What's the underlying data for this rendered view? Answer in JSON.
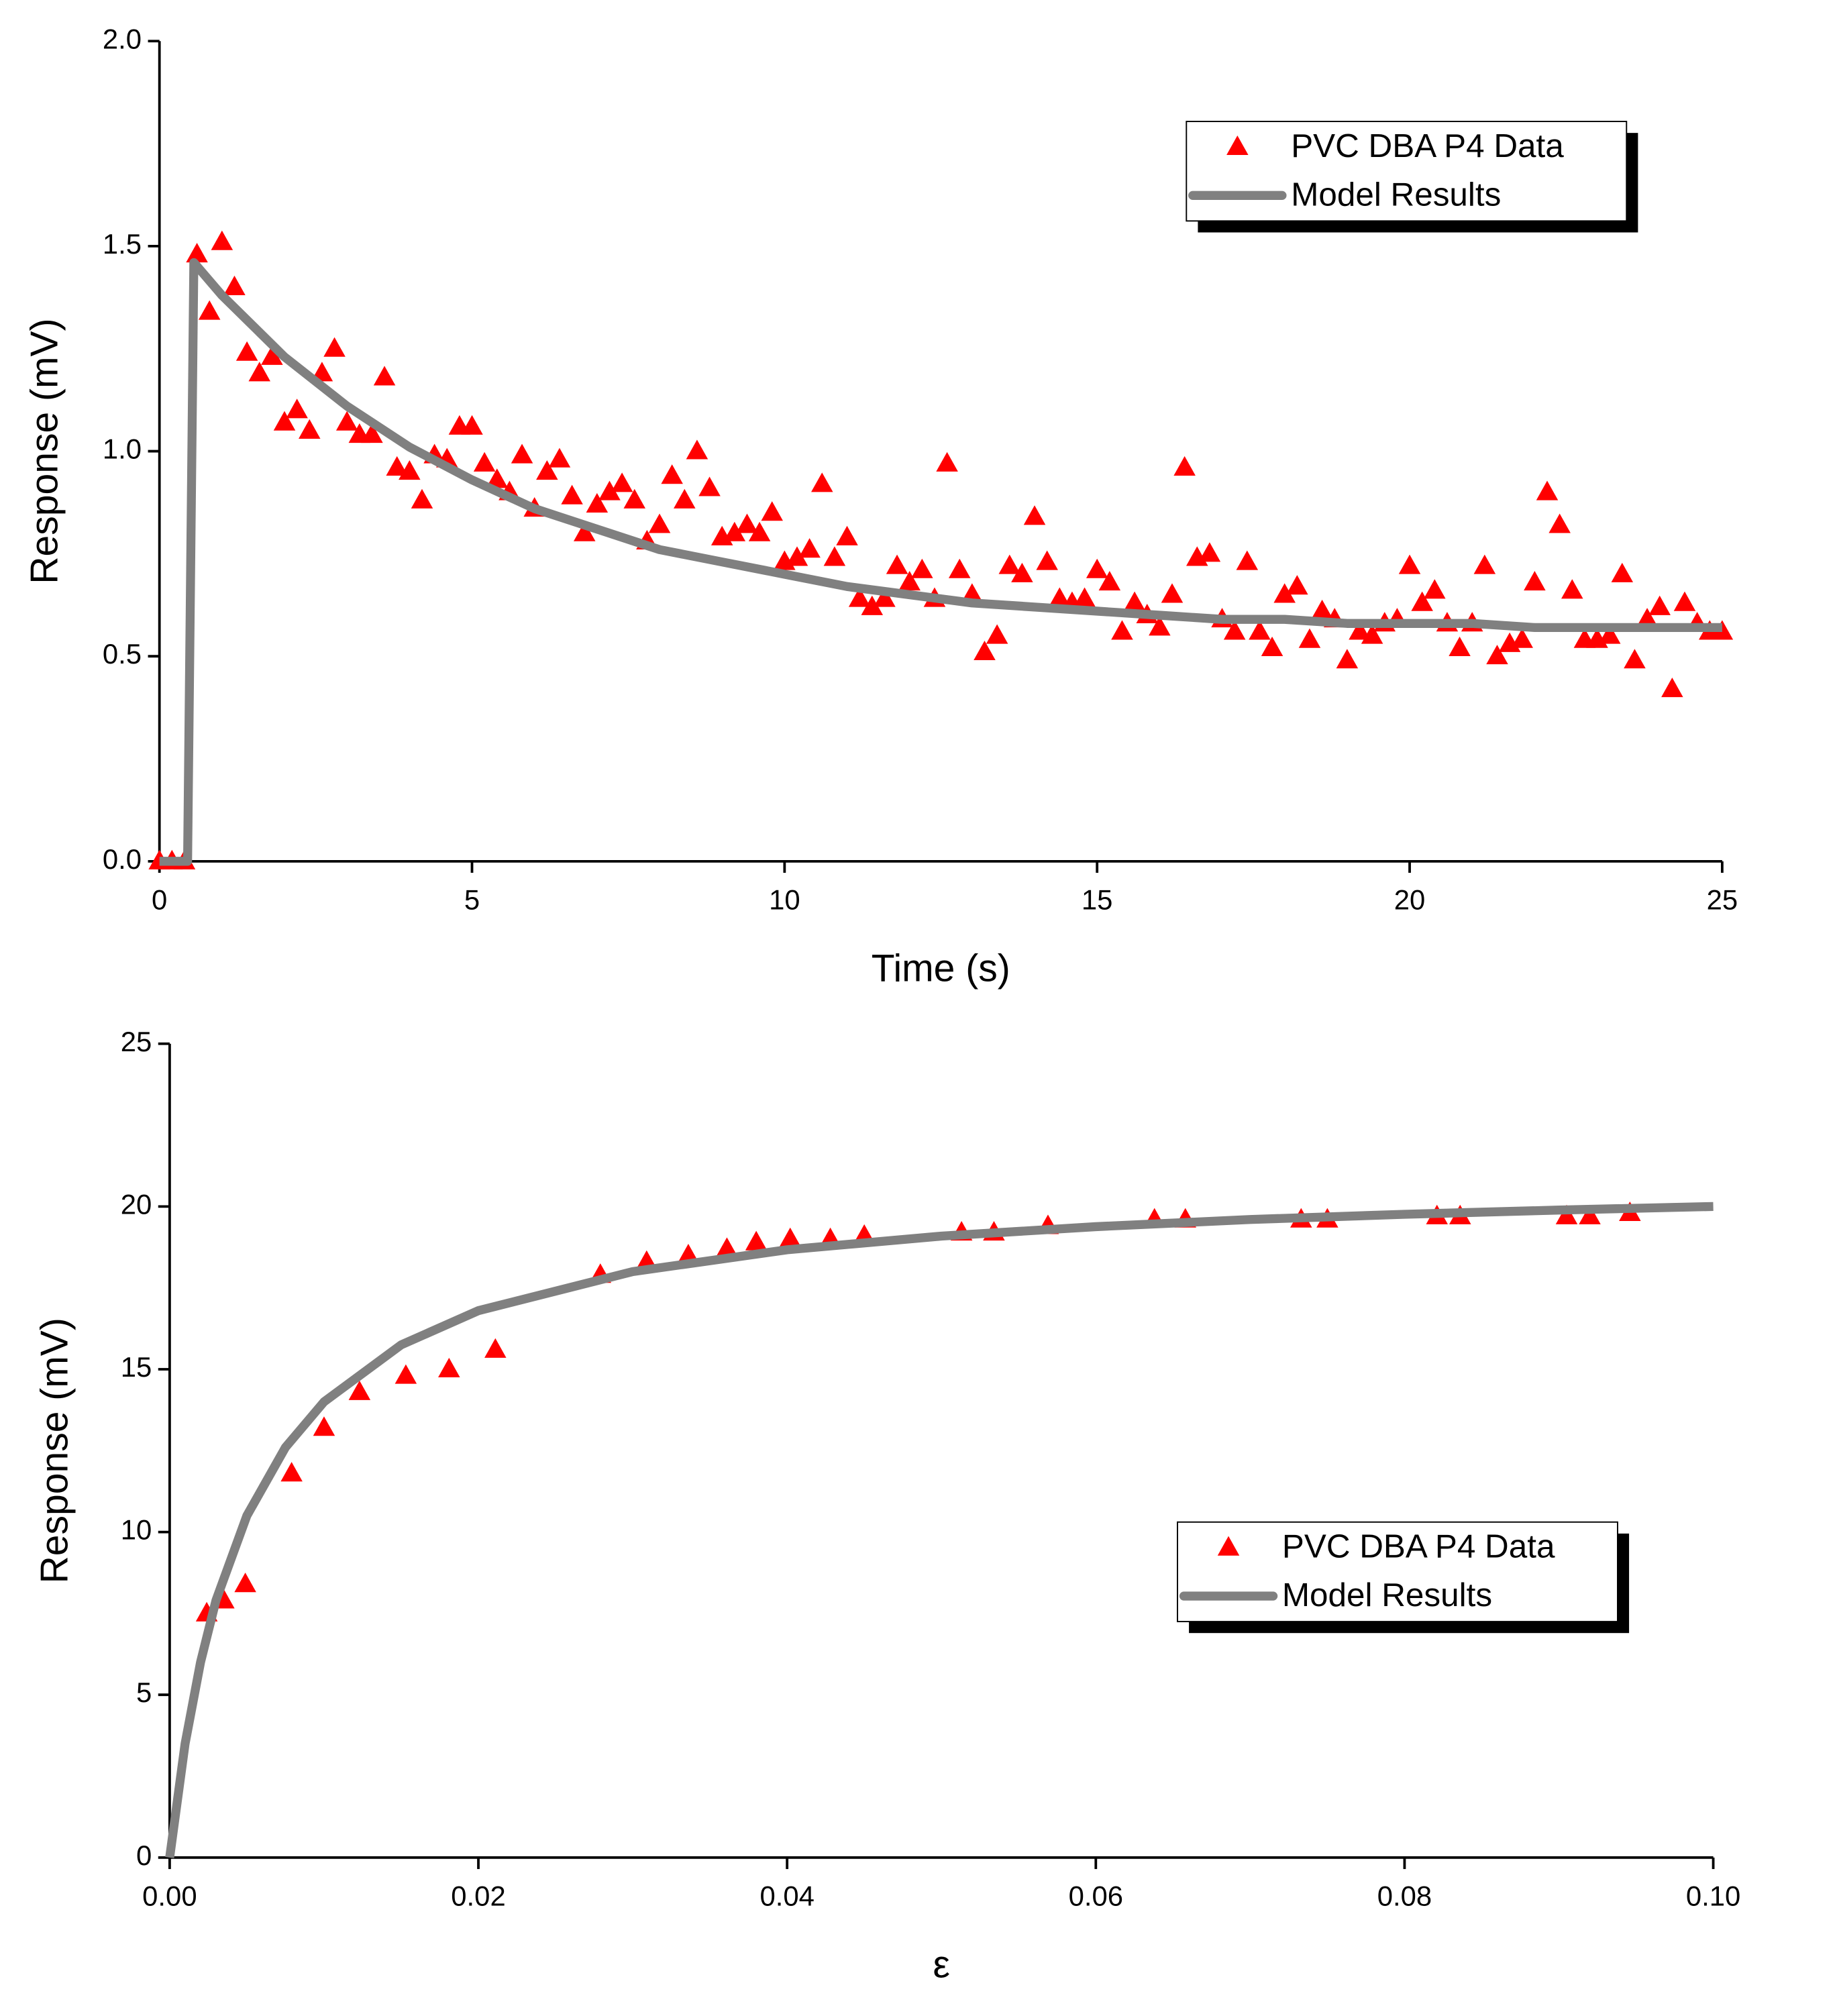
{
  "chart_data": [
    {
      "type": "scatter",
      "xlabel": "Time (s)",
      "ylabel": "Response (mV)",
      "xlim": [
        0,
        25
      ],
      "xticks": [
        0,
        5,
        10,
        15,
        20,
        25
      ],
      "ylim": [
        0,
        2.0
      ],
      "yticks": [
        {
          "value": 0,
          "label": "0.0"
        },
        0.5,
        {
          "value": 1,
          "label": "1.0"
        },
        1.5,
        {
          "value": 2,
          "label": "2.0"
        }
      ],
      "legend": "upper right",
      "series": [
        {
          "name": "PVC DBA P4 Data",
          "color": "#ff0000",
          "marker": "triangle",
          "x": [
            0,
            0.2,
            0.4,
            0.6,
            0.8,
            1.0,
            1.2,
            1.4,
            1.6,
            1.8,
            2.0,
            2.2,
            2.4,
            2.6,
            2.8,
            3.0,
            3.2,
            3.4,
            3.6,
            3.8,
            4.0,
            4.2,
            4.4,
            4.6,
            4.8,
            5.0,
            5.2,
            5.4,
            5.6,
            5.8,
            6.0,
            6.2,
            6.4,
            6.6,
            6.8,
            7.0,
            7.2,
            7.4,
            7.6,
            7.8,
            8.0,
            8.2,
            8.4,
            8.6,
            8.8,
            9.0,
            9.2,
            9.4,
            9.6,
            9.8,
            10.0,
            10.2,
            10.4,
            10.6,
            10.8,
            11.0,
            11.2,
            11.4,
            11.6,
            11.8,
            12.0,
            12.2,
            12.4,
            12.6,
            12.8,
            13.0,
            13.2,
            13.4,
            13.6,
            13.8,
            14.0,
            14.2,
            14.4,
            14.6,
            14.8,
            15.0,
            15.2,
            15.4,
            15.6,
            15.8,
            16.0,
            16.2,
            16.4,
            16.6,
            16.8,
            17.0,
            17.2,
            17.4,
            17.6,
            17.8,
            18.0,
            18.2,
            18.4,
            18.6,
            18.8,
            19.0,
            19.2,
            19.4,
            19.6,
            19.8,
            20.0,
            20.2,
            20.4,
            20.6,
            20.8,
            21.0,
            21.2,
            21.4,
            21.6,
            21.8,
            22.0,
            22.2,
            22.4,
            22.6,
            22.8,
            23.0,
            23.2,
            23.4,
            23.6,
            23.8,
            24.0,
            24.2,
            24.4,
            24.6,
            24.8,
            25.0
          ],
          "values": [
            0,
            0,
            0,
            1.48,
            1.34,
            1.51,
            1.4,
            1.24,
            1.19,
            1.23,
            1.07,
            1.1,
            1.05,
            1.19,
            1.25,
            1.07,
            1.04,
            1.04,
            1.18,
            0.96,
            0.95,
            0.88,
            0.99,
            0.98,
            1.06,
            1.06,
            0.97,
            0.93,
            0.9,
            0.99,
            0.86,
            0.95,
            0.98,
            0.89,
            0.8,
            0.87,
            0.9,
            0.92,
            0.88,
            0.78,
            0.82,
            0.94,
            0.88,
            1.0,
            0.91,
            0.79,
            0.8,
            0.82,
            0.8,
            0.85,
            0.73,
            0.74,
            0.76,
            0.92,
            0.74,
            0.79,
            0.64,
            0.62,
            0.64,
            0.72,
            0.68,
            0.71,
            0.64,
            0.97,
            0.71,
            0.65,
            0.51,
            0.55,
            0.72,
            0.7,
            0.84,
            0.73,
            0.64,
            0.63,
            0.64,
            0.71,
            0.68,
            0.56,
            0.63,
            0.6,
            0.57,
            0.65,
            0.96,
            0.74,
            0.75,
            0.59,
            0.56,
            0.73,
            0.56,
            0.52,
            0.65,
            0.67,
            0.54,
            0.61,
            0.59,
            0.49,
            0.56,
            0.55,
            0.58,
            0.59,
            0.72,
            0.63,
            0.66,
            0.58,
            0.52,
            0.58,
            0.72,
            0.5,
            0.53,
            0.54,
            0.68,
            0.9,
            0.82,
            0.66,
            0.54,
            0.54,
            0.55,
            0.7,
            0.49,
            0.59,
            0.62,
            0.42,
            0.63,
            0.58,
            0.56,
            0.56
          ]
        },
        {
          "name": "Model Results",
          "color": "#808080",
          "marker": "line",
          "x": [
            0,
            0.45,
            0.55,
            1,
            2,
            3,
            4,
            5,
            6,
            7,
            8,
            9,
            10,
            11,
            12,
            13,
            14,
            15,
            16,
            17,
            18,
            19,
            20,
            21,
            22,
            23,
            24,
            25
          ],
          "values": [
            0,
            0,
            1.46,
            1.38,
            1.23,
            1.11,
            1.01,
            0.93,
            0.86,
            0.81,
            0.76,
            0.73,
            0.7,
            0.67,
            0.65,
            0.63,
            0.62,
            0.61,
            0.6,
            0.59,
            0.59,
            0.58,
            0.58,
            0.58,
            0.57,
            0.57,
            0.57,
            0.57
          ]
        }
      ]
    },
    {
      "type": "scatter",
      "xlabel": "ε",
      "ylabel": "Response (mV)",
      "xlim": [
        0,
        0.1
      ],
      "xticks": [
        {
          "value": 0,
          "label": "0.00"
        },
        {
          "value": 0.02,
          "label": "0.02"
        },
        {
          "value": 0.04,
          "label": "0.04"
        },
        {
          "value": 0.06,
          "label": "0.06"
        },
        {
          "value": 0.08,
          "label": "0.08"
        },
        {
          "value": 0.1,
          "label": "0.10"
        }
      ],
      "ylim": [
        0,
        25
      ],
      "yticks": [
        0,
        5,
        10,
        15,
        20,
        25
      ],
      "legend": "lower right",
      "series": [
        {
          "name": "PVC DBA P4 Data",
          "color": "#ff0000",
          "marker": "triangle",
          "x": [
            0.0024,
            0.0035,
            0.0049,
            0.0079,
            0.01,
            0.0123,
            0.0153,
            0.0181,
            0.0211,
            0.0279,
            0.0309,
            0.0336,
            0.0361,
            0.038,
            0.0402,
            0.0428,
            0.045,
            0.0513,
            0.0534,
            0.0569,
            0.0638,
            0.0658,
            0.0733,
            0.075,
            0.0821,
            0.0836,
            0.0905,
            0.092,
            0.0946
          ],
          "values": [
            7.5,
            7.9,
            8.4,
            11.8,
            13.2,
            14.3,
            14.8,
            15.0,
            15.6,
            17.9,
            18.3,
            18.5,
            18.7,
            18.9,
            19.0,
            19.0,
            19.1,
            19.2,
            19.2,
            19.4,
            19.6,
            19.6,
            19.6,
            19.6,
            19.7,
            19.7,
            19.7,
            19.7,
            19.8
          ]
        },
        {
          "name": "Model Results",
          "color": "#808080",
          "marker": "line",
          "x": [
            0,
            0.001,
            0.002,
            0.003,
            0.005,
            0.0075,
            0.01,
            0.015,
            0.02,
            0.03,
            0.04,
            0.05,
            0.06,
            0.07,
            0.08,
            0.09,
            0.1
          ],
          "values": [
            0,
            3.5,
            6.0,
            7.9,
            10.5,
            12.6,
            14.0,
            15.75,
            16.8,
            18.0,
            18.67,
            19.09,
            19.38,
            19.6,
            19.76,
            19.89,
            20.0
          ]
        }
      ]
    }
  ]
}
